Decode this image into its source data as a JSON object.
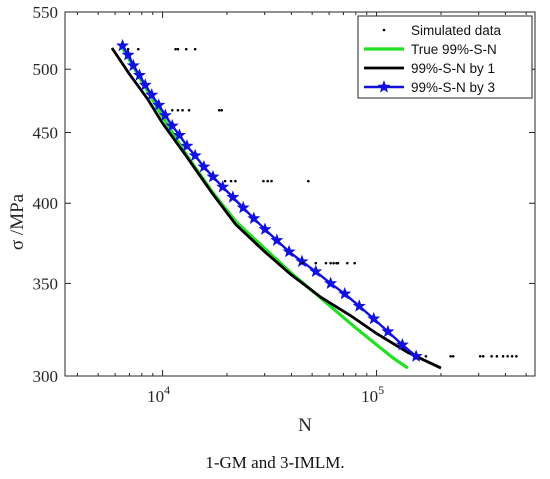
{
  "caption": "1-GM and 3-IMLM.",
  "chart_data": {
    "type": "line",
    "xlabel": "N",
    "ylabel": "σ /MPa",
    "xscale": "log",
    "yscale": "log",
    "xlim": [
      3500,
      550000
    ],
    "ylim": [
      300,
      550
    ],
    "y_ticks": [
      300,
      350,
      400,
      450,
      500,
      550
    ],
    "x_ticks": [
      {
        "value": 10000,
        "base": "10",
        "exp": "4"
      },
      {
        "value": 100000,
        "base": "10",
        "exp": "5"
      }
    ],
    "legend_position": "top-right",
    "series": [
      {
        "name": "Simulated data",
        "kind": "scatter",
        "color": "#000000",
        "points": [
          [
            6900,
            517
          ],
          [
            7700,
            517
          ],
          [
            11500,
            517
          ],
          [
            11800,
            517
          ],
          [
            12900,
            517
          ],
          [
            14200,
            517
          ],
          [
            11100,
            467
          ],
          [
            11800,
            467
          ],
          [
            12400,
            467
          ],
          [
            13300,
            467
          ],
          [
            18400,
            467
          ],
          [
            18900,
            467
          ],
          [
            19600,
            415
          ],
          [
            20900,
            415
          ],
          [
            21900,
            415
          ],
          [
            29600,
            415
          ],
          [
            31000,
            415
          ],
          [
            32300,
            415
          ],
          [
            48000,
            415
          ],
          [
            45000,
            362
          ],
          [
            52000,
            362
          ],
          [
            58000,
            362
          ],
          [
            61000,
            362
          ],
          [
            63000,
            362
          ],
          [
            65000,
            362
          ],
          [
            66000,
            362
          ],
          [
            73000,
            362
          ],
          [
            79000,
            362
          ],
          [
            170000,
            310
          ],
          [
            222000,
            310
          ],
          [
            228000,
            310
          ],
          [
            305000,
            310
          ],
          [
            315000,
            310
          ],
          [
            345000,
            310
          ],
          [
            365000,
            310
          ],
          [
            390000,
            310
          ],
          [
            410000,
            310
          ],
          [
            430000,
            310
          ],
          [
            450000,
            310
          ]
        ]
      },
      {
        "name": "True 99%-S-N",
        "kind": "line",
        "color": "#22e022",
        "points": [
          [
            6500,
            518
          ],
          [
            8000,
            490
          ],
          [
            10000,
            462
          ],
          [
            13000,
            433
          ],
          [
            17000,
            408
          ],
          [
            22000,
            388
          ],
          [
            30000,
            371
          ],
          [
            40000,
            356
          ],
          [
            52000,
            344
          ],
          [
            65000,
            334
          ],
          [
            80000,
            325
          ],
          [
            100000,
            316
          ],
          [
            120000,
            309
          ],
          [
            140000,
            304
          ]
        ]
      },
      {
        "name": "99%-S-N by 1",
        "kind": "line",
        "color": "#000000",
        "points": [
          [
            5800,
            518
          ],
          [
            7000,
            496
          ],
          [
            8500,
            476
          ],
          [
            10000,
            457
          ],
          [
            13000,
            432
          ],
          [
            17000,
            407
          ],
          [
            22000,
            386
          ],
          [
            30000,
            369
          ],
          [
            40000,
            355
          ],
          [
            55000,
            342
          ],
          [
            75000,
            332
          ],
          [
            100000,
            322
          ],
          [
            140000,
            312
          ],
          [
            200000,
            304
          ]
        ]
      },
      {
        "name": "99%-S-N by 3",
        "kind": "line-star",
        "color": "#1010e0",
        "points": [
          [
            6500,
            520
          ],
          [
            6900,
            512
          ],
          [
            7300,
            503
          ],
          [
            7800,
            495
          ],
          [
            8300,
            487
          ],
          [
            8900,
            479
          ],
          [
            9600,
            471
          ],
          [
            10300,
            463
          ],
          [
            11100,
            455
          ],
          [
            12000,
            448
          ],
          [
            13000,
            440
          ],
          [
            14200,
            433
          ],
          [
            15600,
            425
          ],
          [
            17200,
            418
          ],
          [
            19100,
            411
          ],
          [
            21300,
            404
          ],
          [
            23800,
            397
          ],
          [
            26700,
            390
          ],
          [
            30100,
            383
          ],
          [
            34200,
            376
          ],
          [
            39000,
            369
          ],
          [
            44800,
            363
          ],
          [
            52000,
            357
          ],
          [
            61000,
            350
          ],
          [
            71000,
            344
          ],
          [
            83000,
            337
          ],
          [
            97000,
            330
          ],
          [
            113000,
            323
          ],
          [
            132000,
            316
          ],
          [
            153000,
            310
          ]
        ]
      }
    ]
  }
}
